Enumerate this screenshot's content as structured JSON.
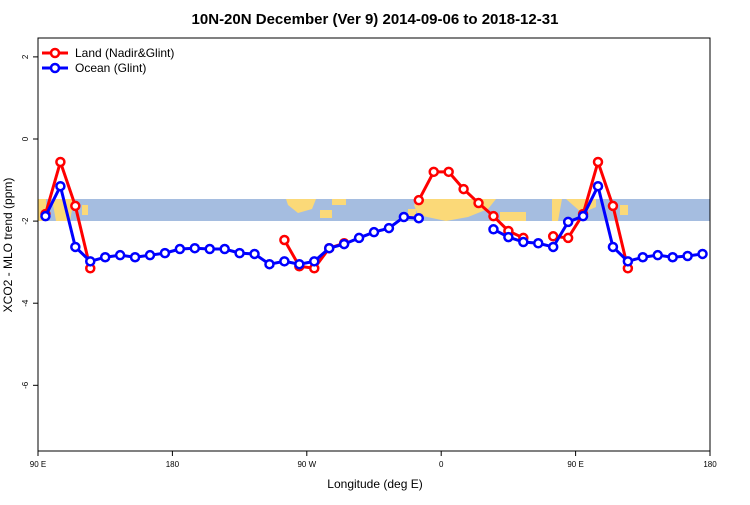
{
  "chart_data": {
    "type": "line",
    "title": "10N-20N December (Ver 9)   2014-09-06 to 2018-12-31",
    "x_label": "Longitude (deg E)",
    "y_label": "XCO2 - MLO trend (ppm)",
    "x": [
      95,
      105,
      115,
      125,
      135,
      145,
      155,
      165,
      175,
      185,
      195,
      205,
      215,
      225,
      235,
      245,
      255,
      265,
      275,
      285,
      295,
      305,
      315,
      325,
      335,
      345,
      355,
      365,
      375,
      385,
      395,
      405,
      415,
      425,
      435,
      445,
      455,
      465,
      475,
      485,
      495,
      505,
      515,
      525,
      535
    ],
    "series": [
      {
        "name": "Land (Nadir&Glint)",
        "color": "#ff0000",
        "values": [
          -1.83,
          -0.56,
          -1.63,
          -3.15,
          null,
          null,
          null,
          null,
          null,
          null,
          null,
          null,
          null,
          null,
          null,
          null,
          -2.46,
          -3.1,
          -3.15,
          -2.66,
          -2.54,
          null,
          null,
          null,
          null,
          -1.49,
          -0.8,
          -0.8,
          -1.22,
          -1.56,
          -1.88,
          -2.24,
          -2.41,
          null,
          -2.37,
          -2.41,
          -1.83,
          -0.56,
          -1.63,
          -3.15,
          null,
          null,
          null,
          null,
          null
        ]
      },
      {
        "name": "Ocean (Glint)",
        "color": "#0000ff",
        "values": [
          -1.88,
          -1.15,
          -2.63,
          -2.98,
          -2.88,
          -2.83,
          -2.88,
          -2.83,
          -2.78,
          -2.68,
          -2.66,
          -2.68,
          -2.68,
          -2.78,
          -2.8,
          -3.05,
          -2.98,
          -3.05,
          -2.98,
          -2.66,
          -2.56,
          -2.41,
          -2.27,
          -2.17,
          -1.9,
          -1.93,
          null,
          null,
          null,
          null,
          -2.2,
          -2.39,
          -2.51,
          -2.54,
          -2.63,
          -2.02,
          -1.88,
          -1.15,
          -2.63,
          -2.98,
          -2.88,
          -2.83,
          -2.88,
          -2.85,
          -2.8
        ]
      }
    ],
    "xlim": [
      90,
      540
    ],
    "xticks": [
      {
        "value": 90,
        "label": "90 E"
      },
      {
        "value": 180,
        "label": "180"
      },
      {
        "value": 270,
        "label": "90 W"
      },
      {
        "value": 360,
        "label": "0"
      },
      {
        "value": 450,
        "label": "90 E"
      },
      {
        "value": 540,
        "label": "180"
      }
    ],
    "ylim": [
      -7.6,
      2.46
    ],
    "yticks": [
      2,
      0,
      -2,
      -4,
      -6
    ],
    "legend": "top-left"
  }
}
